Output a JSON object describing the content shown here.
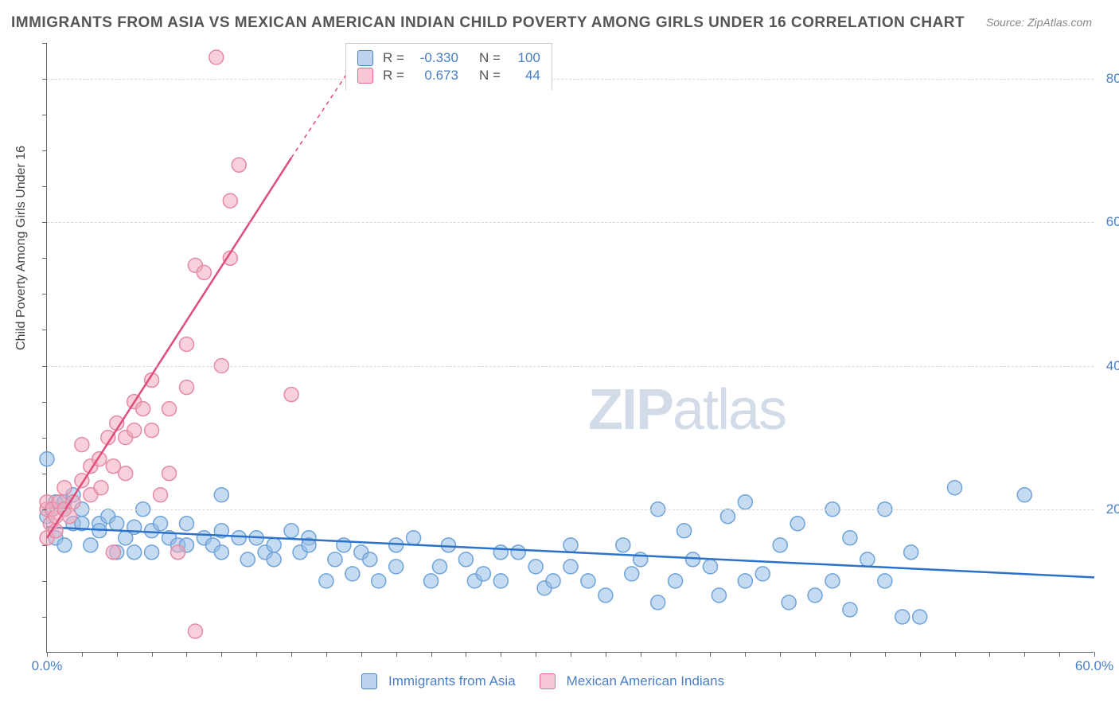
{
  "title": "IMMIGRANTS FROM ASIA VS MEXICAN AMERICAN INDIAN CHILD POVERTY AMONG GIRLS UNDER 16 CORRELATION CHART",
  "source": "Source: ZipAtlas.com",
  "ylabel": "Child Poverty Among Girls Under 16",
  "watermark_a": "ZIP",
  "watermark_b": "atlas",
  "chart": {
    "type": "scatter",
    "xlim": [
      0,
      60
    ],
    "ylim": [
      0,
      85
    ],
    "xticks": [
      0,
      60
    ],
    "xtick_labels": [
      "0.0%",
      "60.0%"
    ],
    "yticks": [
      20,
      40,
      60,
      80
    ],
    "ytick_labels": [
      "20.0%",
      "40.0%",
      "60.0%",
      "80.0%"
    ],
    "xtick_minor_step": 2,
    "background_color": "#ffffff",
    "grid_color": "#d8d8d8",
    "axis_color": "#666666",
    "marker_radius": 9,
    "marker_stroke_width": 1.5,
    "line_width": 2.5
  },
  "stats_box": {
    "rows": [
      {
        "r_label": "R =",
        "r_value": "-0.330",
        "n_label": "N =",
        "n_value": "100",
        "swatch_fill": "#bcd3ee",
        "swatch_border": "#4a7fc4"
      },
      {
        "r_label": "R =",
        "r_value": "0.673",
        "n_label": "N =",
        "n_value": "44",
        "swatch_fill": "#f7c9d6",
        "swatch_border": "#e26a8d"
      }
    ]
  },
  "legend_bottom": [
    {
      "label": "Immigrants from Asia",
      "swatch_fill": "#bcd3ee",
      "swatch_border": "#4a7fc4"
    },
    {
      "label": "Mexican American Indians",
      "swatch_fill": "#f7c9d6",
      "swatch_border": "#e26a8d"
    }
  ],
  "series": [
    {
      "name": "Immigrants from Asia",
      "marker_fill": "rgba(150,190,230,0.55)",
      "marker_stroke": "#6fa3da",
      "line_color": "#2d72c9",
      "trend": {
        "x1": 0,
        "y1": 17.5,
        "x2": 60,
        "y2": 10.5
      },
      "points": [
        [
          0,
          27
        ],
        [
          0,
          19
        ],
        [
          0.3,
          20
        ],
        [
          0.5,
          21
        ],
        [
          0.5,
          16
        ],
        [
          1,
          15
        ],
        [
          1,
          21
        ],
        [
          1,
          20
        ],
        [
          1.5,
          22
        ],
        [
          1.5,
          18
        ],
        [
          2,
          18
        ],
        [
          2,
          20
        ],
        [
          2.5,
          15
        ],
        [
          3,
          18
        ],
        [
          3,
          17
        ],
        [
          3.5,
          19
        ],
        [
          4,
          14
        ],
        [
          4,
          18
        ],
        [
          4.5,
          16
        ],
        [
          5,
          14
        ],
        [
          5,
          17.5
        ],
        [
          5.5,
          20
        ],
        [
          6,
          14
        ],
        [
          6,
          17
        ],
        [
          6.5,
          18
        ],
        [
          7,
          16
        ],
        [
          7.5,
          15
        ],
        [
          8,
          18
        ],
        [
          8,
          15
        ],
        [
          9,
          16
        ],
        [
          9.5,
          15
        ],
        [
          10,
          14
        ],
        [
          10,
          17
        ],
        [
          10,
          22
        ],
        [
          11,
          16
        ],
        [
          11.5,
          13
        ],
        [
          12,
          16
        ],
        [
          12.5,
          14
        ],
        [
          13,
          15
        ],
        [
          13,
          13
        ],
        [
          14,
          17
        ],
        [
          14.5,
          14
        ],
        [
          15,
          16
        ],
        [
          15,
          15
        ],
        [
          16,
          10
        ],
        [
          16.5,
          13
        ],
        [
          17,
          15
        ],
        [
          17.5,
          11
        ],
        [
          18,
          14
        ],
        [
          18.5,
          13
        ],
        [
          19,
          10
        ],
        [
          20,
          15
        ],
        [
          20,
          12
        ],
        [
          21,
          16
        ],
        [
          22,
          10
        ],
        [
          22.5,
          12
        ],
        [
          23,
          15
        ],
        [
          24,
          13
        ],
        [
          24.5,
          10
        ],
        [
          25,
          11
        ],
        [
          26,
          14
        ],
        [
          26,
          10
        ],
        [
          27,
          14
        ],
        [
          28,
          12
        ],
        [
          28.5,
          9
        ],
        [
          29,
          10
        ],
        [
          30,
          15
        ],
        [
          30,
          12
        ],
        [
          31,
          10
        ],
        [
          32,
          8
        ],
        [
          33,
          15
        ],
        [
          33.5,
          11
        ],
        [
          34,
          13
        ],
        [
          35,
          20
        ],
        [
          35,
          7
        ],
        [
          36,
          10
        ],
        [
          36.5,
          17
        ],
        [
          37,
          13
        ],
        [
          38,
          12
        ],
        [
          38.5,
          8
        ],
        [
          39,
          19
        ],
        [
          40,
          10
        ],
        [
          40,
          21
        ],
        [
          41,
          11
        ],
        [
          42,
          15
        ],
        [
          42.5,
          7
        ],
        [
          43,
          18
        ],
        [
          44,
          8
        ],
        [
          45,
          20
        ],
        [
          45,
          10
        ],
        [
          46,
          16
        ],
        [
          46,
          6
        ],
        [
          47,
          13
        ],
        [
          48,
          20
        ],
        [
          48,
          10
        ],
        [
          49,
          5
        ],
        [
          49.5,
          14
        ],
        [
          50,
          5
        ],
        [
          52,
          23
        ],
        [
          56,
          22
        ]
      ]
    },
    {
      "name": "Mexican American Indians",
      "marker_fill": "rgba(240,170,190,0.55)",
      "marker_stroke": "#e58aa5",
      "line_color": "#e04d7a",
      "trend": {
        "x1": 0,
        "y1": 16,
        "x2": 14,
        "y2": 69
      },
      "trend_dash": {
        "x1": 14,
        "y1": 69,
        "x2": 17.8,
        "y2": 83
      },
      "points": [
        [
          0,
          16
        ],
        [
          0,
          20
        ],
        [
          0,
          21
        ],
        [
          0.2,
          18
        ],
        [
          0.3,
          20
        ],
        [
          0.5,
          17
        ],
        [
          0.5,
          19
        ],
        [
          0.7,
          21
        ],
        [
          1,
          23
        ],
        [
          1,
          20
        ],
        [
          1.3,
          19
        ],
        [
          1.5,
          21
        ],
        [
          2,
          29
        ],
        [
          2,
          24
        ],
        [
          2.5,
          26
        ],
        [
          2.5,
          22
        ],
        [
          3,
          27
        ],
        [
          3.1,
          23
        ],
        [
          3.5,
          30
        ],
        [
          3.8,
          26
        ],
        [
          3.8,
          14
        ],
        [
          4,
          32
        ],
        [
          4.5,
          30
        ],
        [
          4.5,
          25
        ],
        [
          5,
          35
        ],
        [
          5,
          31
        ],
        [
          5.5,
          34
        ],
        [
          6,
          31
        ],
        [
          6,
          38
        ],
        [
          6.5,
          22
        ],
        [
          7,
          25
        ],
        [
          7,
          34
        ],
        [
          7.5,
          14
        ],
        [
          8,
          37
        ],
        [
          8,
          43
        ],
        [
          8.5,
          54
        ],
        [
          8.5,
          3
        ],
        [
          9,
          53
        ],
        [
          9.7,
          83
        ],
        [
          10,
          40
        ],
        [
          10.5,
          55
        ],
        [
          10.5,
          63
        ],
        [
          11,
          68
        ],
        [
          14,
          36
        ]
      ]
    }
  ]
}
